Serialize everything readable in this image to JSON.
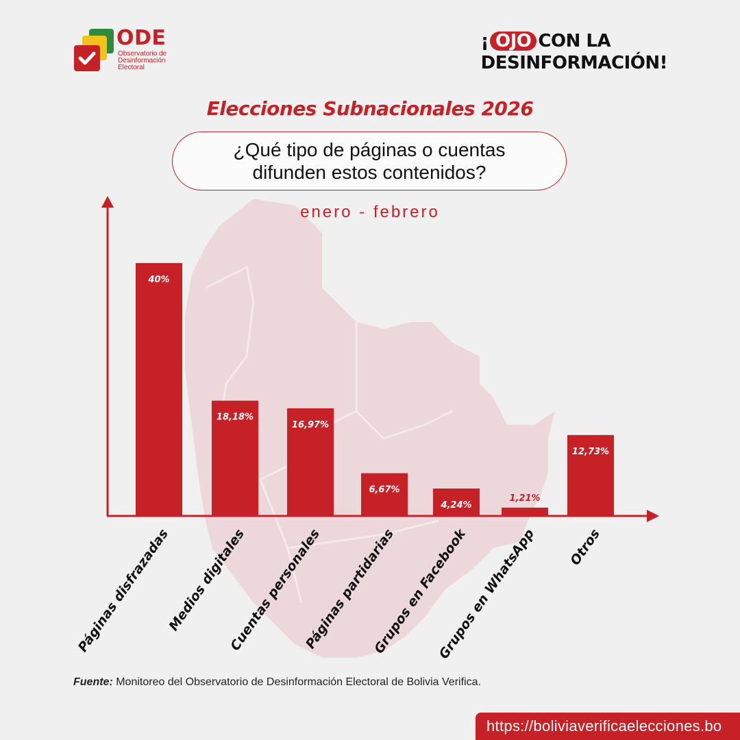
{
  "header": {
    "logo_name": "ODE",
    "logo_subtitle": "Observatorio de Desinformación Electoral",
    "slogan_prefix": "¡",
    "slogan_highlight": "OJO",
    "slogan_line1_rest": "CON LA",
    "slogan_line2": "DESINFORMACIÓN!"
  },
  "title": "Elecciones Subnacionales 2026",
  "question": "¿Qué tipo de páginas o cuentas difunden estos contenidos?",
  "period": "enero - febrero",
  "chart_data": {
    "type": "bar",
    "categories": [
      "Páginas disfrazadas",
      "Medios digitales",
      "Cuentas personales",
      "Páginas partidarias",
      "Grupos en Facebook",
      "Grupos en WhatsApp",
      "Otros"
    ],
    "values": [
      40,
      18.18,
      16.97,
      6.67,
      4.24,
      1.21,
      12.73
    ],
    "value_labels": [
      "40%",
      "18,18%",
      "16,97%",
      "6,67%",
      "4,24%",
      "1,21%",
      "12,73%"
    ],
    "ylim": [
      0,
      40
    ],
    "grid": false,
    "bar_color": "#c62127"
  },
  "source_key": "Fuente:",
  "source_text": " Monitoreo del Observatorio de Desinformación Electoral de Bolivia Verifica.",
  "url": "https://boliviaverificaelecciones.bo",
  "colors": {
    "accent": "#c62127",
    "background": "#f1f0f0",
    "map": "#ecd7da"
  }
}
